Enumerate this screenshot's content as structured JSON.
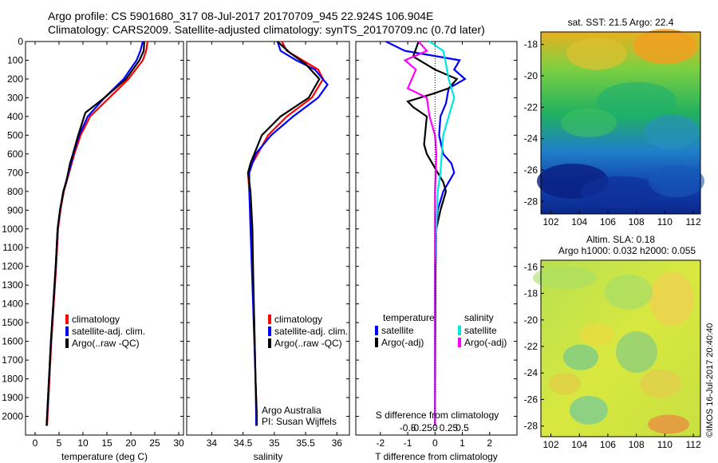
{
  "header": {
    "line1": "Argo profile: CS 5901680_317 08-Jul-2017 20170709_945 22.924S 106.904E",
    "line2": "Climatology: CARS2009. Satellite-adjusted climatology: synTS_20170709.nc (0.7d later)"
  },
  "colors": {
    "climatology": "#ff0000",
    "satellite": "#0000ff",
    "argo": "#000000",
    "sat_salinity": "#00e5e5",
    "argo_salinity": "#ff00ff"
  },
  "chart_data": [
    {
      "type": "line",
      "name": "temperature",
      "xlabel": "temperature (deg C)",
      "ylabel": "",
      "xlim": [
        -2,
        31
      ],
      "ylim": [
        2100,
        0
      ],
      "xticks": [
        0,
        5,
        10,
        15,
        20,
        25,
        30
      ],
      "yticks": [
        0,
        100,
        200,
        300,
        400,
        500,
        600,
        700,
        800,
        900,
        1000,
        1100,
        1200,
        1300,
        1400,
        1500,
        1600,
        1700,
        1800,
        1900,
        2000
      ],
      "legend": [
        "climatology",
        "satellite-adj. clim.",
        "Argo(..raw -QC)"
      ],
      "series": [
        {
          "name": "climatology",
          "color": "#ff0000",
          "points": [
            [
              23.5,
              0
            ],
            [
              23.2,
              50
            ],
            [
              22.5,
              100
            ],
            [
              19.5,
              200
            ],
            [
              15.5,
              300
            ],
            [
              11.5,
              400
            ],
            [
              9.5,
              500
            ],
            [
              8.2,
              600
            ],
            [
              7.1,
              700
            ],
            [
              6.0,
              800
            ],
            [
              5.3,
              900
            ],
            [
              4.8,
              1000
            ],
            [
              4.4,
              1200
            ],
            [
              3.9,
              1400
            ],
            [
              3.4,
              1600
            ],
            [
              3.0,
              1800
            ],
            [
              2.6,
              2000
            ],
            [
              2.5,
              2050
            ]
          ]
        },
        {
          "name": "satellite",
          "color": "#0000ff",
          "points": [
            [
              22.5,
              0
            ],
            [
              22.0,
              50
            ],
            [
              21.2,
              100
            ],
            [
              18.5,
              200
            ],
            [
              14.5,
              300
            ],
            [
              11.0,
              400
            ],
            [
              9.2,
              500
            ],
            [
              8.0,
              600
            ],
            [
              7.0,
              700
            ],
            [
              5.9,
              800
            ],
            [
              5.2,
              900
            ],
            [
              4.7,
              1000
            ],
            [
              4.3,
              1200
            ],
            [
              3.8,
              1400
            ],
            [
              3.3,
              1600
            ],
            [
              2.9,
              1800
            ],
            [
              2.5,
              2000
            ],
            [
              2.4,
              2050
            ]
          ]
        },
        {
          "name": "argo",
          "color": "#000000",
          "points": [
            [
              22.8,
              0
            ],
            [
              22.7,
              50
            ],
            [
              21.8,
              100
            ],
            [
              19.0,
              200
            ],
            [
              14.5,
              300
            ],
            [
              10.5,
              380
            ],
            [
              9.0,
              500
            ],
            [
              7.9,
              600
            ],
            [
              7.3,
              650
            ],
            [
              6.5,
              750
            ],
            [
              5.9,
              800
            ],
            [
              5.2,
              900
            ],
            [
              4.7,
              1000
            ],
            [
              4.3,
              1200
            ],
            [
              3.8,
              1400
            ],
            [
              3.3,
              1600
            ],
            [
              2.9,
              1800
            ],
            [
              2.5,
              2000
            ],
            [
              2.4,
              2050
            ]
          ]
        }
      ]
    },
    {
      "type": "line",
      "name": "salinity",
      "xlabel": "salinity",
      "ylabel": "",
      "xlim": [
        33.6,
        36.2
      ],
      "ylim": [
        2100,
        0
      ],
      "xticks": [
        34,
        34.5,
        35,
        35.5,
        36
      ],
      "legend": [
        "climatology",
        "satellite-adj. clim.",
        "Argo(..raw -QC)"
      ],
      "annotation": [
        "Argo Australia",
        "PI: Susan Wijffels"
      ],
      "series": [
        {
          "name": "climatology",
          "color": "#ff0000",
          "points": [
            [
              35.12,
              0
            ],
            [
              35.2,
              50
            ],
            [
              35.45,
              100
            ],
            [
              35.7,
              150
            ],
            [
              35.78,
              200
            ],
            [
              35.6,
              300
            ],
            [
              35.2,
              400
            ],
            [
              34.9,
              500
            ],
            [
              34.65,
              650
            ],
            [
              34.58,
              700
            ],
            [
              34.6,
              800
            ],
            [
              34.63,
              1000
            ],
            [
              34.65,
              1200
            ],
            [
              34.68,
              1500
            ],
            [
              34.7,
              1800
            ],
            [
              34.72,
              2000
            ],
            [
              34.72,
              2050
            ]
          ]
        },
        {
          "name": "satellite",
          "color": "#0000ff",
          "points": [
            [
              35.05,
              0
            ],
            [
              35.1,
              50
            ],
            [
              35.35,
              100
            ],
            [
              35.65,
              150
            ],
            [
              35.85,
              230
            ],
            [
              35.7,
              300
            ],
            [
              35.3,
              400
            ],
            [
              34.95,
              500
            ],
            [
              34.7,
              600
            ],
            [
              34.6,
              700
            ],
            [
              34.6,
              800
            ],
            [
              34.62,
              1000
            ],
            [
              34.64,
              1200
            ],
            [
              34.67,
              1500
            ],
            [
              34.7,
              1800
            ],
            [
              34.71,
              2000
            ],
            [
              34.71,
              2050
            ]
          ]
        },
        {
          "name": "argo",
          "color": "#000000",
          "points": [
            [
              35.05,
              0
            ],
            [
              35.25,
              60
            ],
            [
              35.5,
              120
            ],
            [
              35.72,
              200
            ],
            [
              35.55,
              300
            ],
            [
              35.1,
              400
            ],
            [
              34.8,
              500
            ],
            [
              34.62,
              650
            ],
            [
              34.58,
              700
            ],
            [
              34.62,
              800
            ],
            [
              34.65,
              1000
            ],
            [
              34.66,
              1200
            ],
            [
              34.68,
              1500
            ],
            [
              34.7,
              1800
            ],
            [
              34.72,
              2000
            ],
            [
              34.72,
              2050
            ]
          ]
        }
      ]
    },
    {
      "type": "line",
      "name": "difference",
      "xlabel": "T difference from climatology",
      "x2label": "S difference from climatology",
      "xlim": [
        -2.9,
        3.0
      ],
      "ylim": [
        2100,
        0
      ],
      "xticks": [
        -2,
        -1,
        0,
        1,
        2
      ],
      "x2ticks": [
        "-0.5",
        "-0.25",
        "0",
        "0.25",
        "0.5"
      ],
      "legend_headers": [
        "temperature",
        "salinity"
      ],
      "legend": [
        "satellite",
        "Argo(-adj)",
        "satellite",
        "Argo(-adj)"
      ],
      "series": [
        {
          "name": "satellite",
          "color": "#0000ff",
          "points": [
            [
              -1.8,
              0
            ],
            [
              -1.1,
              50
            ],
            [
              0.9,
              100
            ],
            [
              0.7,
              150
            ],
            [
              1.1,
              200
            ],
            [
              0.5,
              250
            ],
            [
              0.4,
              330
            ],
            [
              0.2,
              400
            ],
            [
              0.15,
              500
            ],
            [
              0.3,
              600
            ],
            [
              0.6,
              650
            ],
            [
              0.7,
              700
            ],
            [
              0.3,
              800
            ],
            [
              0.1,
              900
            ],
            [
              0.05,
              1000
            ],
            [
              0.0,
              1200
            ],
            [
              0.0,
              2050
            ]
          ]
        },
        {
          "name": "argo",
          "color": "#000000",
          "points": [
            [
              -0.6,
              0
            ],
            [
              -0.8,
              80
            ],
            [
              0.0,
              150
            ],
            [
              0.8,
              200
            ],
            [
              0.5,
              250
            ],
            [
              -0.1,
              280
            ],
            [
              -1.0,
              320
            ],
            [
              -0.8,
              350
            ],
            [
              -0.3,
              400
            ],
            [
              -0.4,
              550
            ],
            [
              -0.3,
              600
            ],
            [
              0.1,
              700
            ],
            [
              0.3,
              750
            ],
            [
              0.4,
              800
            ],
            [
              0.2,
              900
            ],
            [
              0.05,
              1000
            ],
            [
              0.02,
              1200
            ],
            [
              0.0,
              2050
            ]
          ]
        },
        {
          "name": "satellite salinity",
          "color": "#00e5e5",
          "points": [
            [
              -0.2,
              0
            ],
            [
              0.3,
              50
            ],
            [
              0.4,
              120
            ],
            [
              0.5,
              200
            ],
            [
              0.7,
              300
            ],
            [
              0.5,
              400
            ],
            [
              0.3,
              500
            ],
            [
              0.25,
              600
            ],
            [
              0.2,
              700
            ],
            [
              0.1,
              800
            ],
            [
              0.05,
              1000
            ],
            [
              0.0,
              1200
            ],
            [
              0.0,
              2050
            ]
          ]
        },
        {
          "name": "argo salinity",
          "color": "#ff00ff",
          "points": [
            [
              -0.6,
              0
            ],
            [
              -0.3,
              50
            ],
            [
              -1.1,
              100
            ],
            [
              -0.7,
              150
            ],
            [
              -1.0,
              250
            ],
            [
              -0.3,
              300
            ],
            [
              -0.2,
              400
            ],
            [
              0.0,
              500
            ],
            [
              0.05,
              600
            ],
            [
              0.0,
              800
            ],
            [
              0.0,
              1000
            ],
            [
              0.0,
              1200
            ],
            [
              0.0,
              2050
            ]
          ]
        }
      ]
    },
    {
      "type": "heatmap",
      "name": "sst-map",
      "title": "sat. SST: 21.5  Argo: 22.4",
      "xlim": [
        101.3,
        112.5
      ],
      "ylim": [
        -28.8,
        -17.2
      ],
      "xticks": [
        "102",
        "104",
        "106",
        "108",
        "110",
        "112"
      ],
      "yticks": [
        "-18",
        "-20",
        "-22",
        "-24",
        "-26",
        "-28"
      ]
    },
    {
      "type": "heatmap",
      "name": "sla-map",
      "title1": "Altim. SLA: 0.18",
      "title2": "Argo h1000: 0.032 h2000: 0.055",
      "xlim": [
        101.3,
        112.5
      ],
      "ylim": [
        -28.8,
        -15.5
      ],
      "xticks": [
        "102",
        "104",
        "106",
        "108",
        "110",
        "112"
      ],
      "yticks": [
        "-16",
        "-18",
        "-20",
        "-22",
        "-24",
        "-26",
        "-28"
      ]
    }
  ],
  "credit": "©IMOS 16-Jul-2017 20:40:40"
}
